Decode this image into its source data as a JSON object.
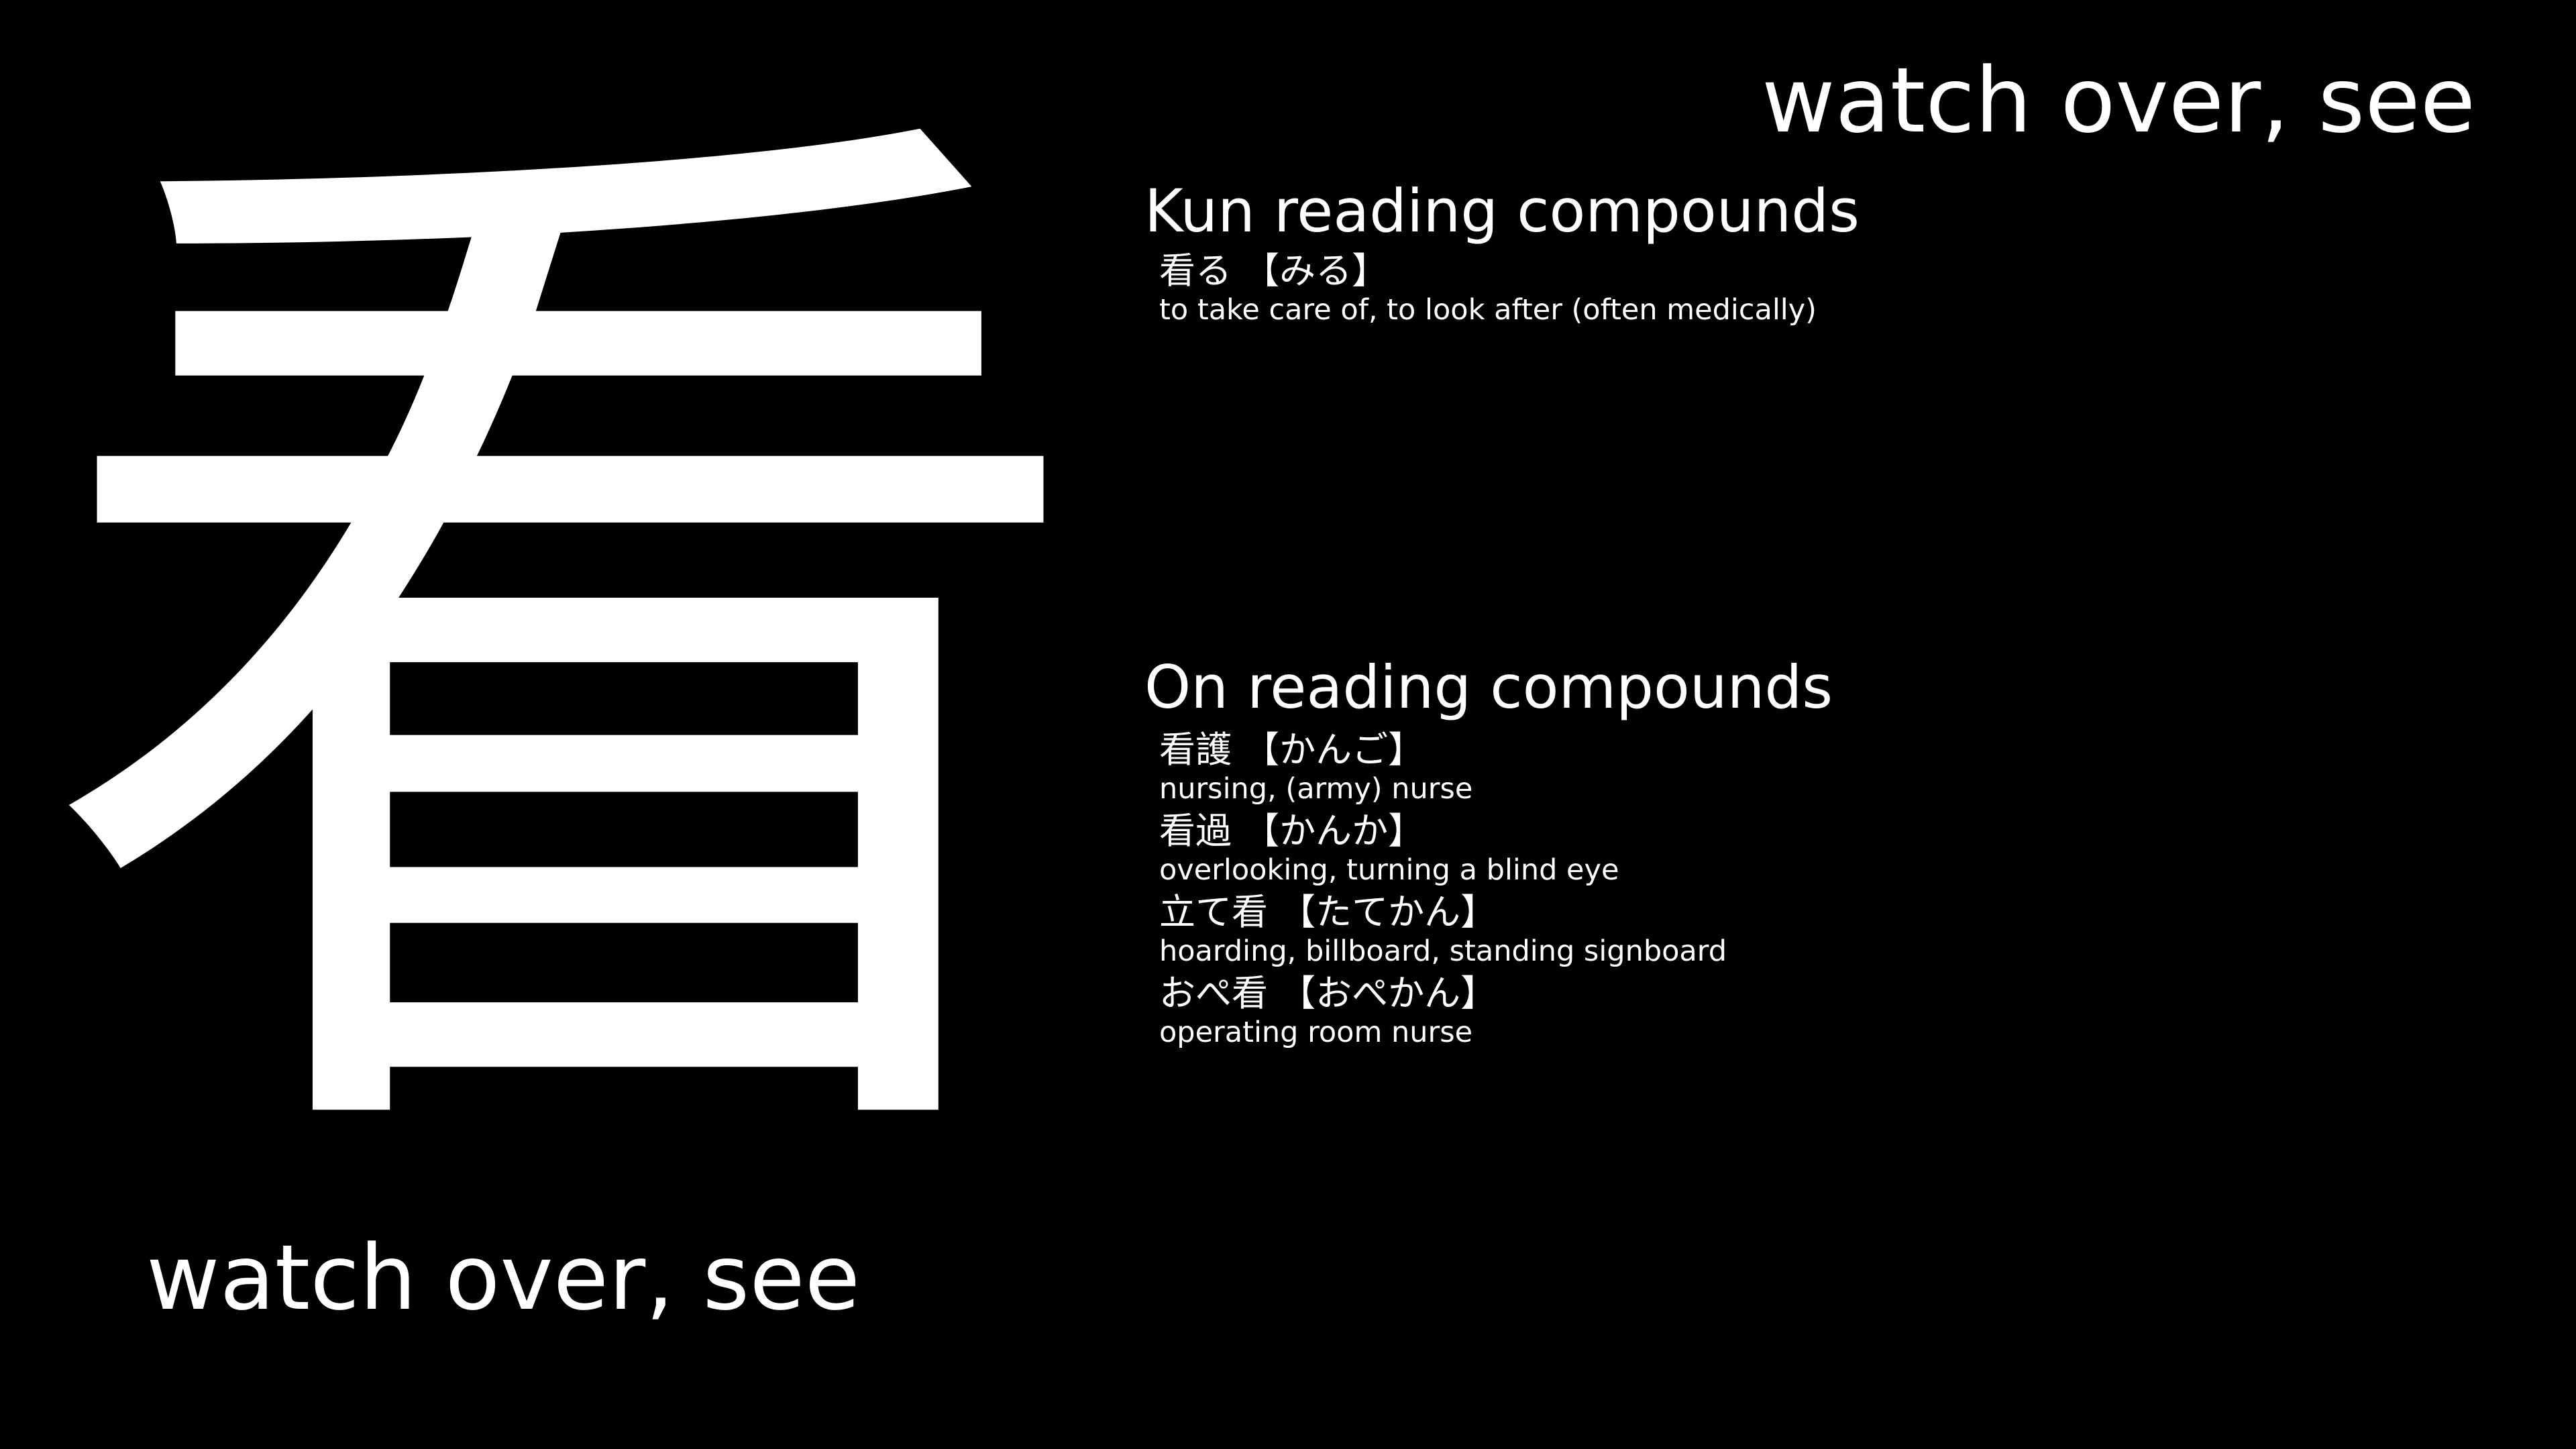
{
  "kanji": "看",
  "meaning": "watch over, see",
  "kun": {
    "heading": "Kun reading compounds",
    "items": [
      {
        "word": "看る",
        "reading": "【みる】",
        "gloss": "to take care of, to look after (often medically)"
      }
    ]
  },
  "on": {
    "heading": "On reading compounds",
    "items": [
      {
        "word": "看護",
        "reading": "【かんご】",
        "gloss": "nursing, (army) nurse"
      },
      {
        "word": "看過",
        "reading": "【かんか】",
        "gloss": "overlooking, turning a blind eye"
      },
      {
        "word": "立て看",
        "reading": "【たてかん】",
        "gloss": "hoarding, billboard, standing signboard"
      },
      {
        "word": "おぺ看",
        "reading": "【おぺかん】",
        "gloss": "operating room nurse"
      }
    ]
  },
  "colors": {
    "background": "#000000",
    "text": "#ffffff"
  }
}
